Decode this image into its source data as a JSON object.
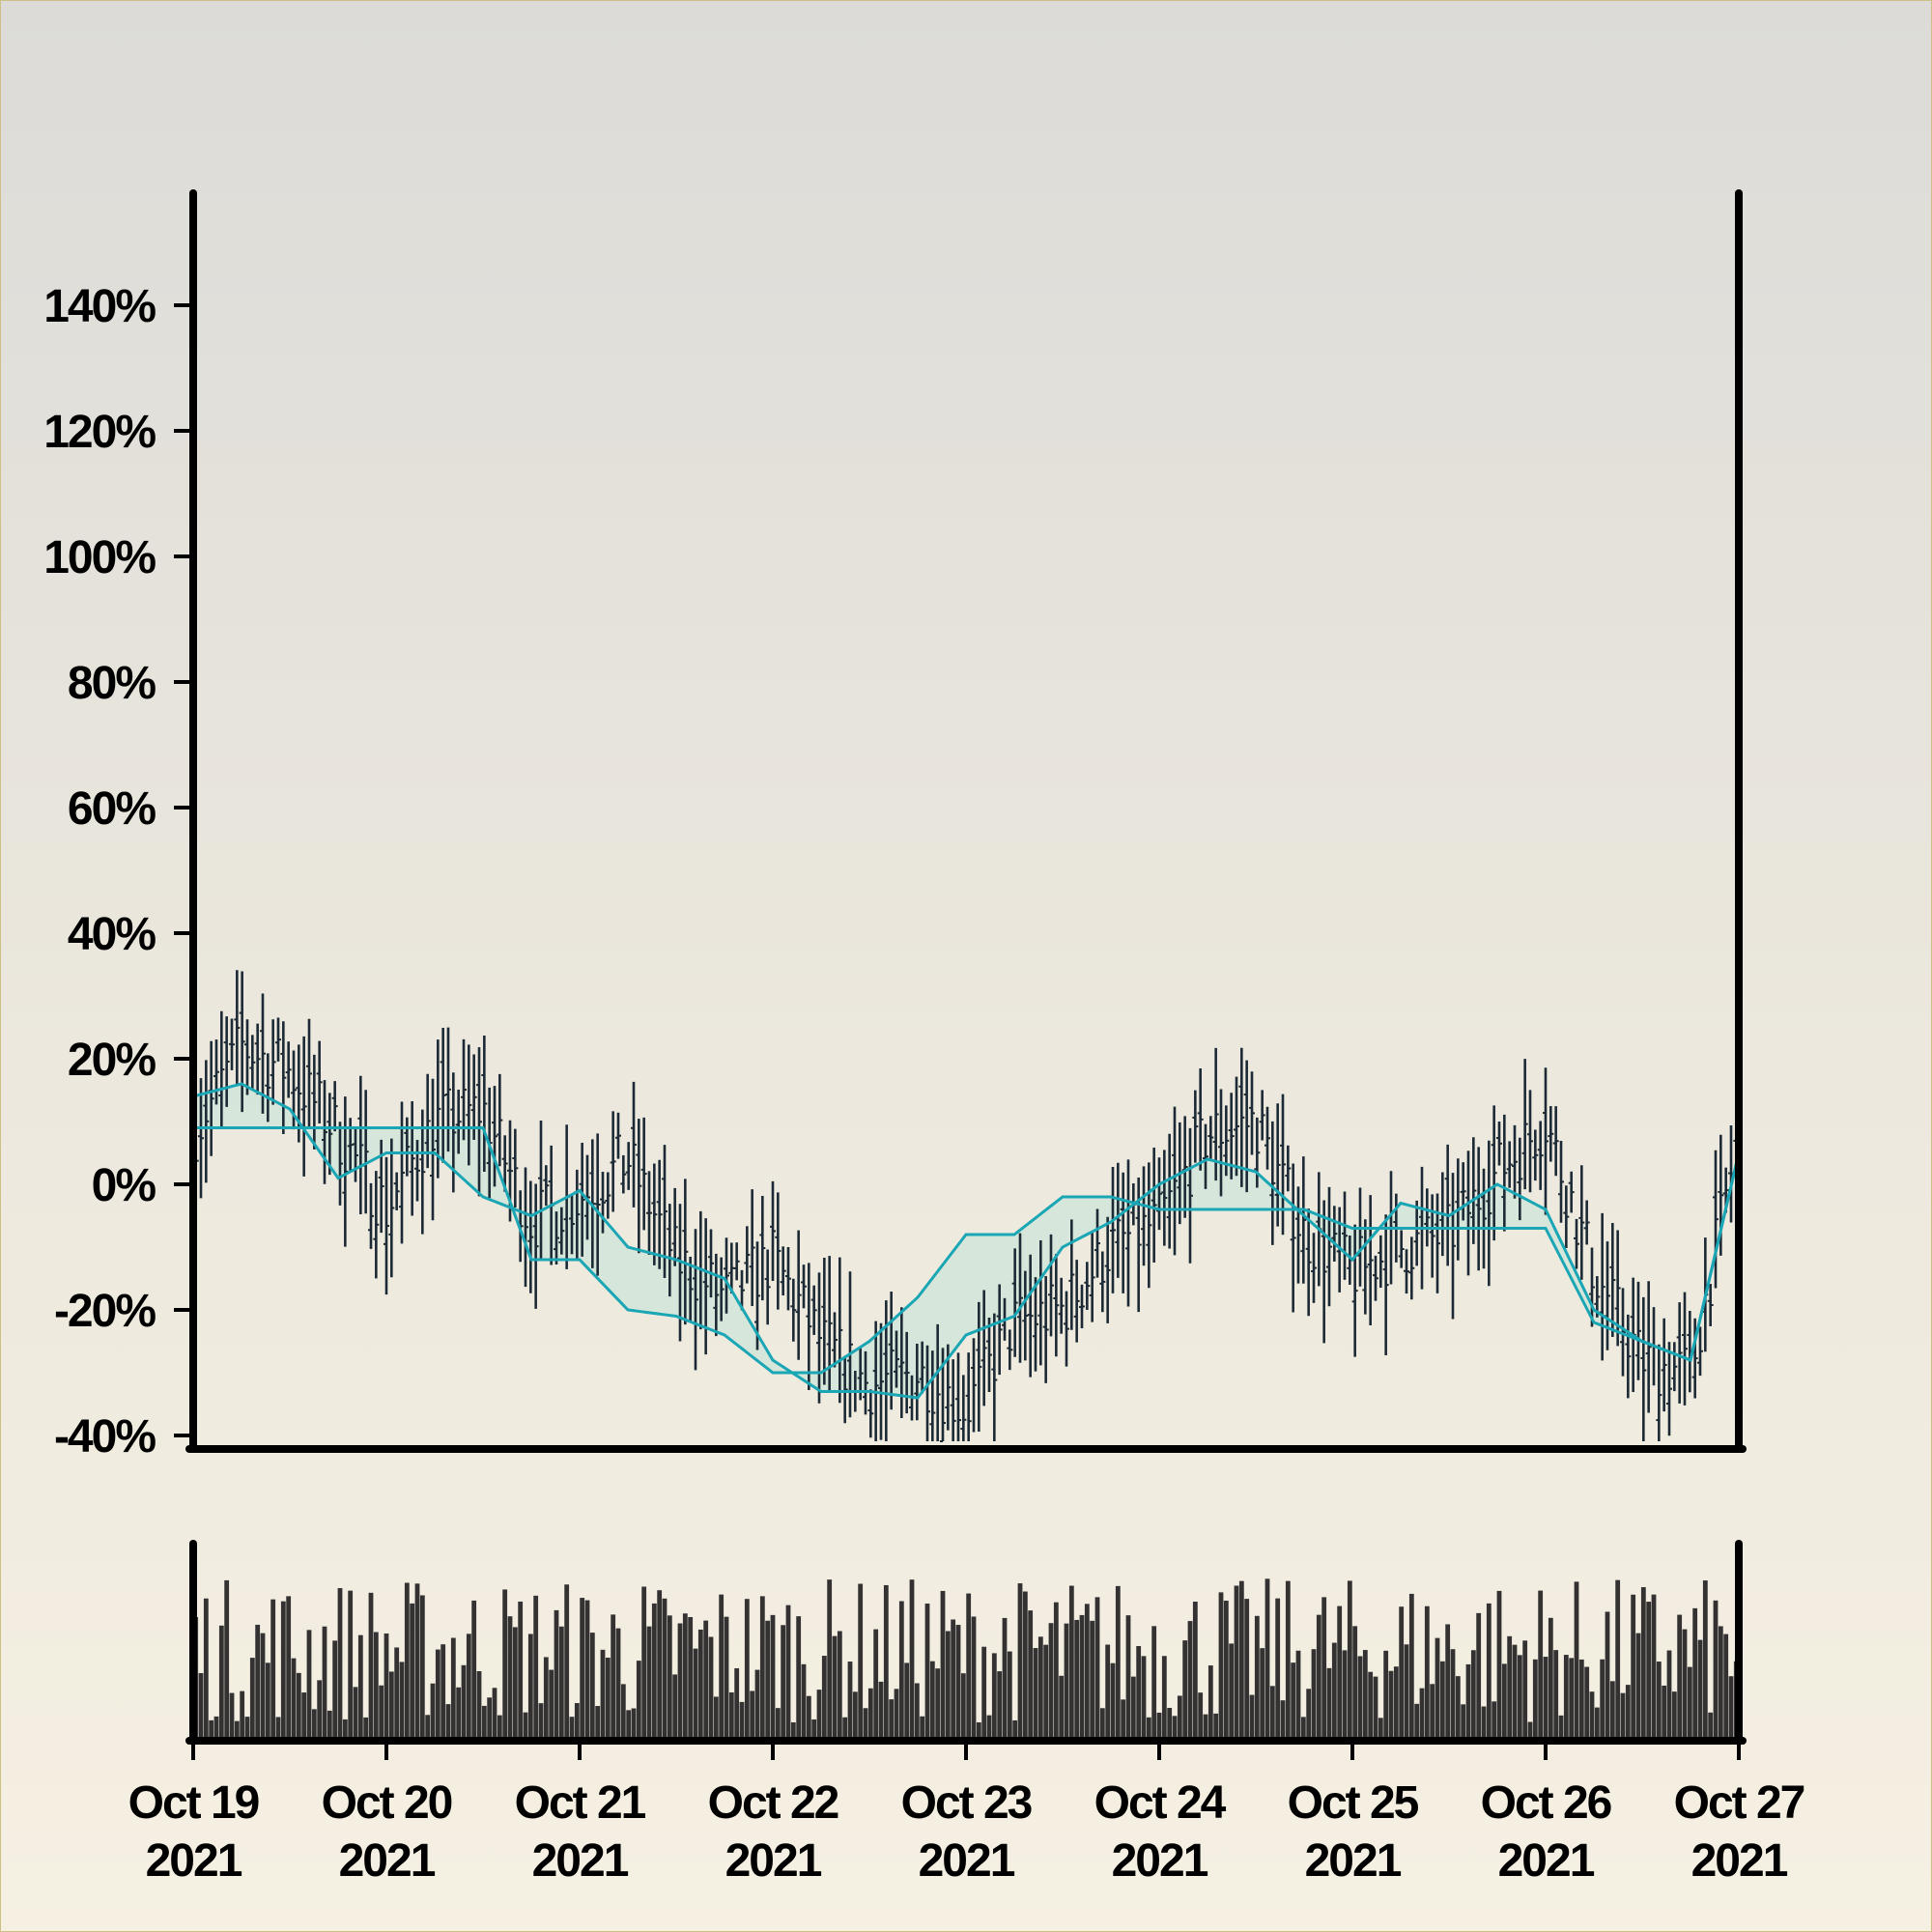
{
  "chart_data": [
    {
      "type": "ohlc",
      "panel": "price",
      "x_start": "2021-10-19",
      "x_end": "2021-10-27",
      "ylim": [
        -40,
        160
      ],
      "ytick_values": [
        -40,
        -20,
        0,
        20,
        40,
        60,
        80,
        100,
        120,
        140
      ],
      "ytick_labels": [
        "-40%",
        "-20%",
        "0%",
        "20%",
        "40%",
        "60%",
        "80%",
        "100%",
        "120%",
        "140%"
      ],
      "bar_color": "#1c2a36",
      "overlay_line_color": "#1aa6b4",
      "overlay_fill_color": "#cfe4d8",
      "approx_series": {
        "description_points_x_days_from_start": [
          0,
          0.25,
          0.5,
          0.75,
          1.0,
          1.25,
          1.5,
          1.75,
          2.0,
          2.25,
          2.5,
          2.75,
          3.0,
          3.25,
          3.5,
          3.75,
          4.0,
          4.25,
          4.5,
          4.75,
          5.0,
          5.25,
          5.5,
          5.75,
          6.0,
          6.25,
          6.5,
          6.75,
          7.0,
          7.25,
          7.5,
          7.75,
          8.0
        ],
        "close_pct": [
          8,
          22,
          18,
          8,
          -4,
          10,
          12,
          -6,
          -2,
          4,
          -12,
          -18,
          -12,
          -25,
          -32,
          -30,
          -36,
          -22,
          -20,
          -10,
          -6,
          8,
          10,
          -8,
          -14,
          -10,
          -8,
          2,
          10,
          -14,
          -28,
          -30,
          8
        ],
        "fast_line_pct": [
          14,
          16,
          12,
          1,
          5,
          5,
          -2,
          -5,
          -1,
          -10,
          -12,
          -15,
          -28,
          -33,
          -33,
          -34,
          -24,
          -21,
          -10,
          -6,
          0,
          4,
          2,
          -5,
          -12,
          -3,
          -5,
          0,
          -4,
          -20,
          -25,
          -28,
          5
        ],
        "slow_line_pct": [
          9,
          9,
          9,
          9,
          9,
          9,
          9,
          -12,
          -12,
          -20,
          -21,
          -24,
          -30,
          -30,
          -25,
          -18,
          -8,
          -8,
          -2,
          -2,
          -4,
          -4,
          -4,
          -4,
          -7,
          -7,
          -7,
          -7,
          -7,
          -22,
          -25,
          -28,
          5
        ]
      }
    },
    {
      "type": "bar",
      "panel": "volume",
      "x_start": "2021-10-19",
      "x_end": "2021-10-27",
      "bar_color": "#333132",
      "xtick_labels": [
        [
          "Oct 19",
          "2021"
        ],
        [
          "Oct 20",
          "2021"
        ],
        [
          "Oct 21",
          "2021"
        ],
        [
          "Oct 22",
          "2021"
        ],
        [
          "Oct 23",
          "2021"
        ],
        [
          "Oct 24",
          "2021"
        ],
        [
          "Oct 25",
          "2021"
        ],
        [
          "Oct 26",
          "2021"
        ],
        [
          "Oct 27",
          "2021"
        ]
      ]
    }
  ]
}
